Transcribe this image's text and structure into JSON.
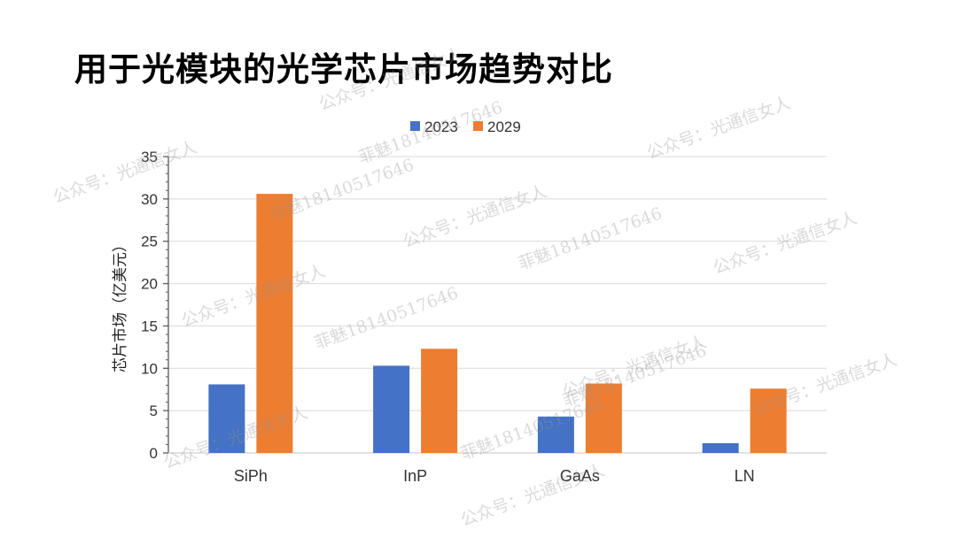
{
  "title": "用于光模块的光学芯片市场趋势对比",
  "watermarks": [
    "公众号：光通信女人",
    "菲魅18140517646"
  ],
  "chart_data": {
    "type": "bar",
    "title": "用于光模块的光学芯片市场趋势对比",
    "xlabel": "",
    "ylabel": "芯片市场（亿美元）",
    "categories": [
      "SiPh",
      "InP",
      "GaAs",
      "LN"
    ],
    "series": [
      {
        "name": "2023",
        "color": "#4472C4",
        "values": [
          8.1,
          10.3,
          4.3,
          1.15
        ]
      },
      {
        "name": "2029",
        "color": "#ED7D31",
        "values": [
          30.6,
          12.3,
          8.2,
          7.6
        ]
      }
    ],
    "ylim": [
      0,
      35
    ],
    "yticks": [
      0,
      5,
      10,
      15,
      20,
      25,
      30,
      35
    ],
    "grid": true,
    "legend": "top-center"
  }
}
